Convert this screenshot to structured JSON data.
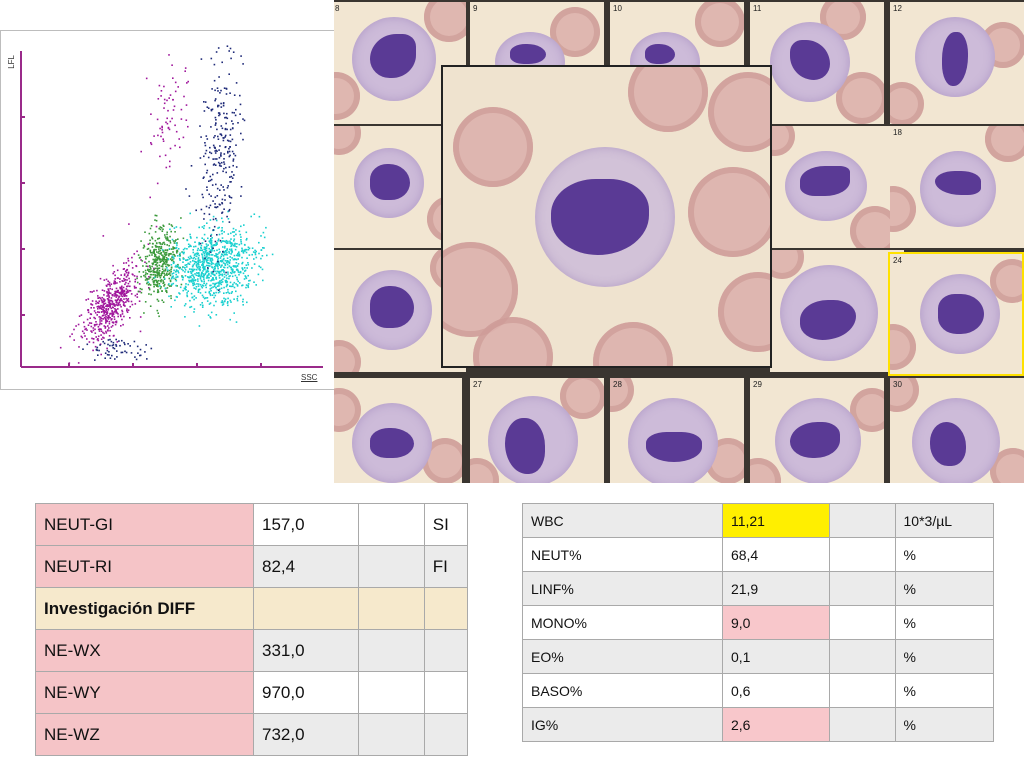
{
  "scattergram": {
    "y_axis_label": "LFL",
    "x_axis_label": "SSC",
    "colors": {
      "purple_population": "#a0179c",
      "green_population": "#3c9a3c",
      "cyan_population": "#19d0cf",
      "blue_population": "#1e2a78",
      "axis": "#9a2a8a"
    }
  },
  "gallery": {
    "tile_numbers": [
      "8",
      "9",
      "10",
      "11",
      "12",
      "18",
      "24",
      "27",
      "28",
      "29",
      "30"
    ],
    "selected_tile": "24",
    "colors": {
      "frame": "#3a3530",
      "selected_border": "#ffe100",
      "rbc": "#ddb2ad",
      "nucleus": "#5a3a95"
    }
  },
  "diff_table": {
    "rows": [
      {
        "name": "NEUT-GI",
        "value": "157,0",
        "col3": "",
        "col4": "SI"
      },
      {
        "name": "NEUT-RI",
        "value": "82,4",
        "col3": "",
        "col4": "FI"
      },
      {
        "name": "Investigación  DIFF",
        "value": "",
        "col3": "",
        "col4": ""
      },
      {
        "name": "NE-WX",
        "value": "331,0",
        "col3": "",
        "col4": ""
      },
      {
        "name": "NE-WY",
        "value": "970,0",
        "col3": "",
        "col4": ""
      },
      {
        "name": "NE-WZ",
        "value": "732,0",
        "col3": "",
        "col4": ""
      }
    ]
  },
  "cbc_table": {
    "rows": [
      {
        "name": "WBC",
        "value": "11,21",
        "unit": "10*3/µL"
      },
      {
        "name": "NEUT%",
        "value": "68,4",
        "unit": "%"
      },
      {
        "name": "LINF%",
        "value": "21,9",
        "unit": "%"
      },
      {
        "name": "MONO%",
        "value": "9,0",
        "unit": "%"
      },
      {
        "name": "EO%",
        "value": "0,1",
        "unit": "%"
      },
      {
        "name": "BASO%",
        "value": "0,6",
        "unit": "%"
      },
      {
        "name": "IG%",
        "value": "2,6",
        "unit": "%"
      }
    ],
    "highlight_colors": {
      "yellow": "#ffef00",
      "pink": "#f8c7cb"
    }
  }
}
